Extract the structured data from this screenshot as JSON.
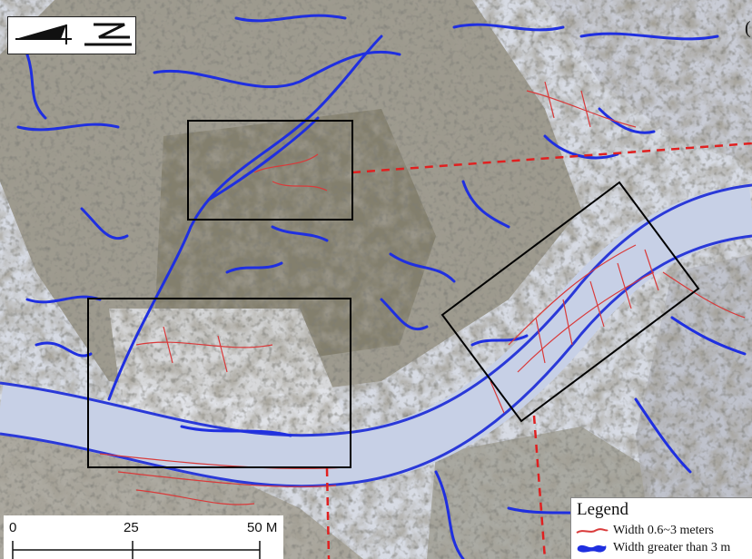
{
  "legend": {
    "title": "Legend",
    "items": [
      {
        "label": "Width 0.6~3 meters",
        "color": "#d93a3a"
      },
      {
        "label": "Width greater than 3 m",
        "color": "#1f2fe0"
      }
    ]
  },
  "scale_bar": {
    "labels": [
      "0",
      "25",
      "50 M"
    ]
  },
  "corner_text": "(",
  "colors": {
    "narrow_crack": "#d93a3a",
    "wide_crack": "#1f2fe0",
    "highlight_box": "#000000",
    "section_line": "#e02020"
  }
}
